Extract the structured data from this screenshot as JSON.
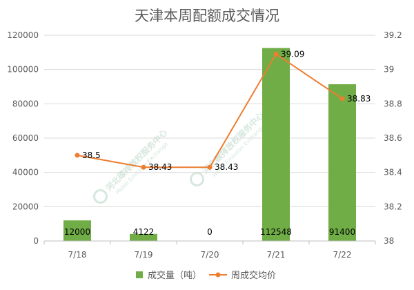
{
  "chart_data": {
    "type": "bar",
    "title": "天津本周配额成交情况",
    "categories": [
      "7/18",
      "7/19",
      "7/20",
      "7/21",
      "7/22"
    ],
    "series": [
      {
        "name": "成交量（吨）",
        "kind": "bar",
        "axis": "left",
        "color": "#70ad47",
        "values": [
          12000,
          4122,
          0,
          112548,
          91400
        ],
        "labels": [
          "12000",
          "4122",
          "0",
          "112548",
          "91400"
        ]
      },
      {
        "name": "周成交均价",
        "kind": "line",
        "axis": "right",
        "color": "#ed7d31",
        "values": [
          38.5,
          38.43,
          38.43,
          39.09,
          38.83
        ],
        "labels": [
          "38.5",
          "38.43",
          "38.43",
          "39.09",
          "38.83"
        ]
      }
    ],
    "y_left": {
      "ylim": [
        0,
        120000
      ],
      "ticks": [
        "0",
        "20000",
        "40000",
        "60000",
        "80000",
        "100000",
        "120000"
      ]
    },
    "y_right": {
      "ylim": [
        38,
        39.2
      ],
      "ticks": [
        "38",
        "38.2",
        "38.4",
        "38.6",
        "38.8",
        "39",
        "39.2"
      ]
    },
    "grid": true,
    "legend_position": "bottom"
  },
  "watermark": {
    "text": "河北碳排放权服务中心",
    "sub": "Hebei Emission Exchange",
    "color": "#d6e7dd"
  }
}
